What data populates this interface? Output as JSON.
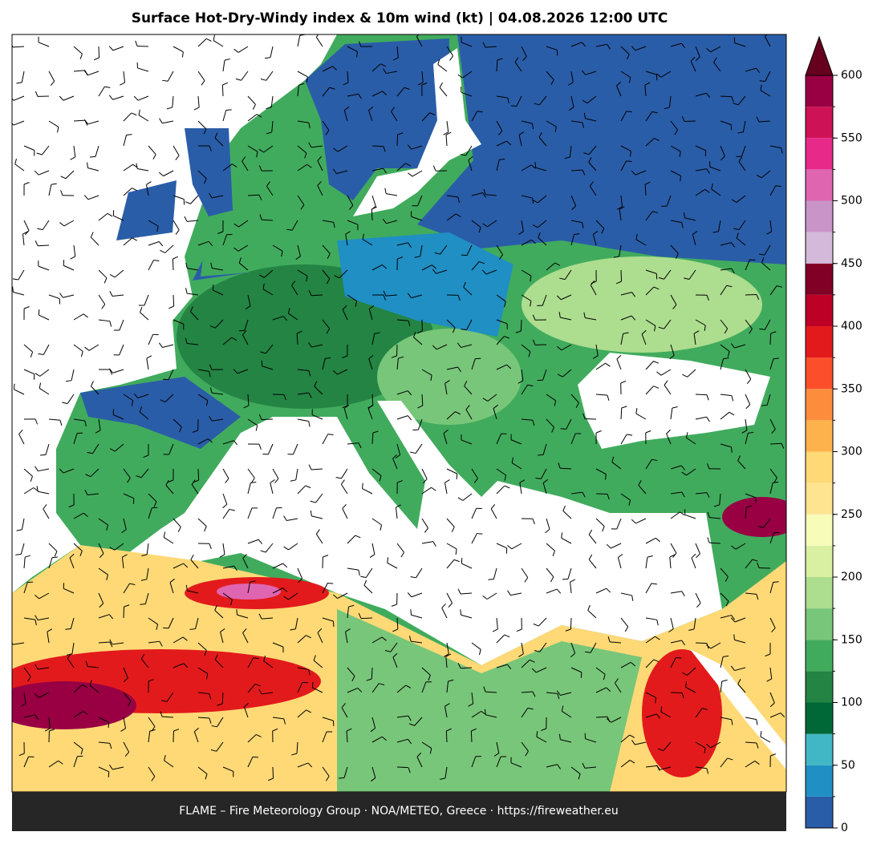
{
  "header": {
    "title": "Surface Hot-Dry-Windy index & 10m wind (kt)  |  04.08.2026 12:00 UTC"
  },
  "footer": {
    "text": "FLAME – Fire Meteorology Group · NOA/METEO, Greece · https://fireweather.eu"
  },
  "colorbar": {
    "levels": [
      0,
      25,
      50,
      75,
      100,
      125,
      150,
      175,
      200,
      225,
      250,
      275,
      300,
      325,
      350,
      375,
      400,
      425,
      450,
      475,
      500,
      525,
      550,
      575,
      600
    ],
    "colors": [
      "#2a5da8",
      "#1f8fc4",
      "#41b6c4",
      "#006837",
      "#238443",
      "#41ab5d",
      "#78c679",
      "#addd8e",
      "#d9f0a3",
      "#f7fcb9",
      "#fee391",
      "#fed976",
      "#feb24c",
      "#fd8d3c",
      "#fc4e2a",
      "#e31a1c",
      "#bd0026",
      "#800026",
      "#d4b9da",
      "#c994c7",
      "#df65b0",
      "#e7298a",
      "#ce1256",
      "#980043"
    ],
    "extend_color": "#67001f",
    "ticks": [
      0,
      50,
      100,
      150,
      200,
      250,
      300,
      350,
      400,
      450,
      500,
      550,
      600
    ]
  }
}
